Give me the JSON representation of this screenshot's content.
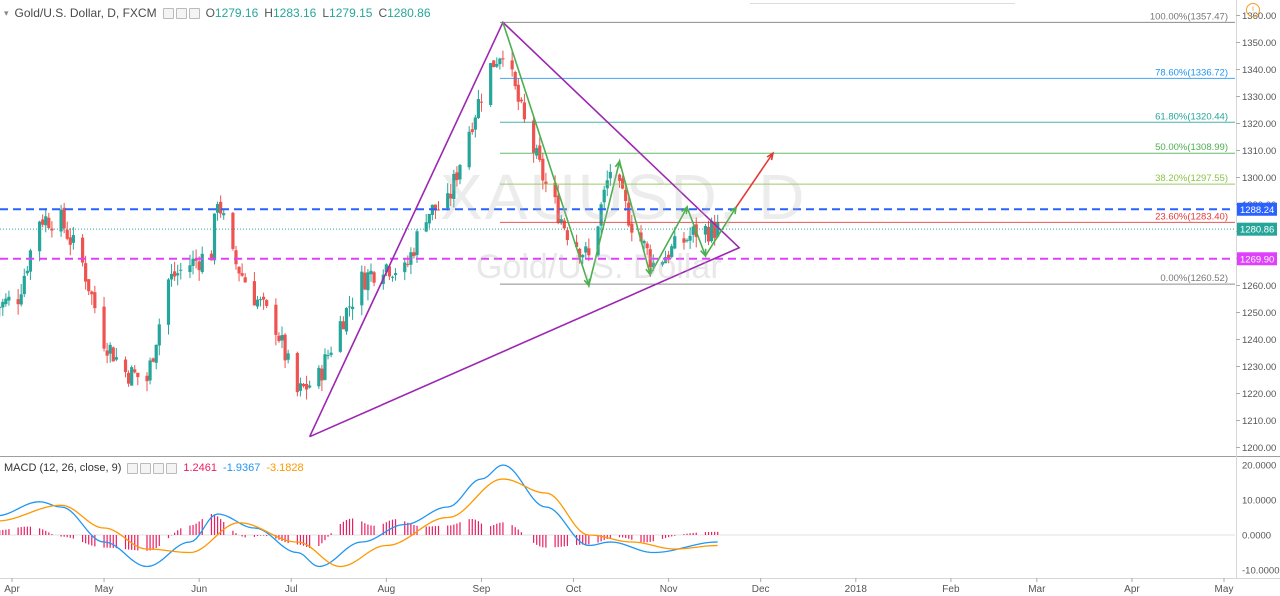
{
  "header": {
    "symbol": "Gold/U.S. Dollar, D, FXCM",
    "open_label": "O",
    "open": "1279.16",
    "high_label": "H",
    "high": "1283.16",
    "low_label": "L",
    "low": "1279.15",
    "close_label": "C",
    "close": "1280.86"
  },
  "watermark": {
    "ticker": "XAUUSD, D",
    "name": "Gold/U.S. Dollar"
  },
  "macd_header": {
    "label": "MACD (12, 26, close, 9)",
    "hist": "1.2461",
    "macd": "-1.9367",
    "signal": "-3.1828"
  },
  "colors": {
    "up": "#26a69a",
    "down": "#ef5350",
    "triangle": "#9c27b0",
    "zigzag": "#4caf50",
    "arrow_red": "#e53935",
    "blue_level": "#2962ff",
    "magenta_level": "#e040fb"
  },
  "chart_data": [
    {
      "type": "candlestick",
      "title": "Gold/U.S. Dollar, D, FXCM",
      "y_ticks": [
        1200,
        1210,
        1220,
        1230,
        1240,
        1250,
        1260,
        1270,
        1280,
        1290,
        1300,
        1310,
        1320,
        1330,
        1340,
        1350,
        1360
      ],
      "y_tick_labels": [
        "1200.00",
        "1210.00",
        "1220.00",
        "1230.00",
        "1240.00",
        "1250.00",
        "1260.00",
        "1270.00",
        "1280.00",
        "1290.00",
        "1300.00",
        "1310.00",
        "1320.00",
        "1330.00",
        "1340.00",
        "1350.00",
        "1360.00"
      ],
      "ylim": [
        1196,
        1363
      ],
      "x_ticks": [
        "Apr",
        "May",
        "Jun",
        "Jul",
        "Aug",
        "Sep",
        "Oct",
        "Nov",
        "Dec",
        "2018",
        "Feb",
        "Mar",
        "Apr",
        "May"
      ],
      "x_tick_dates": [
        "2017-04-01",
        "2017-05-01",
        "2017-06-01",
        "2017-07-01",
        "2017-08-01",
        "2017-09-01",
        "2017-10-01",
        "2017-11-01",
        "2017-12-01",
        "2018-01-01",
        "2018-02-01",
        "2018-03-01",
        "2018-04-01",
        "2018-05-01"
      ],
      "close_path": [
        [
          "2017-03-27",
          1252
        ],
        [
          "2017-04-03",
          1256
        ],
        [
          "2017-04-10",
          1285
        ],
        [
          "2017-04-17",
          1284
        ],
        [
          "2017-04-24",
          1268
        ],
        [
          "2017-05-01",
          1240
        ],
        [
          "2017-05-08",
          1228
        ],
        [
          "2017-05-15",
          1225
        ],
        [
          "2017-05-22",
          1262
        ],
        [
          "2017-05-29",
          1268
        ],
        [
          "2017-06-05",
          1272
        ],
        [
          "2017-06-07",
          1293
        ],
        [
          "2017-06-12",
          1270
        ],
        [
          "2017-06-19",
          1256
        ],
        [
          "2017-06-26",
          1245
        ],
        [
          "2017-07-03",
          1220
        ],
        [
          "2017-07-10",
          1226
        ],
        [
          "2017-07-17",
          1246
        ],
        [
          "2017-07-24",
          1262
        ],
        [
          "2017-07-31",
          1268
        ],
        [
          "2017-08-07",
          1265
        ],
        [
          "2017-08-14",
          1287
        ],
        [
          "2017-08-21",
          1290
        ],
        [
          "2017-08-28",
          1318
        ],
        [
          "2017-09-04",
          1341
        ],
        [
          "2017-09-08",
          1348
        ],
        [
          "2017-09-15",
          1320
        ],
        [
          "2017-09-22",
          1297
        ],
        [
          "2017-09-29",
          1280
        ],
        [
          "2017-10-06",
          1270
        ],
        [
          "2017-10-13",
          1303
        ],
        [
          "2017-10-20",
          1283
        ],
        [
          "2017-10-27",
          1268
        ],
        [
          "2017-11-03",
          1274
        ],
        [
          "2017-11-10",
          1280
        ],
        [
          "2017-11-17",
          1281
        ]
      ],
      "last_price": "1280.86"
    },
    {
      "type": "line",
      "title": "MACD (12, 26, close, 9)",
      "y_ticks": [
        -10,
        0,
        10,
        20
      ],
      "y_tick_labels": [
        "-10.0000",
        "0.0000",
        "10.0000",
        "20.0000"
      ],
      "ylim": [
        -12,
        22
      ],
      "series": [
        {
          "name": "MACD",
          "color": "#2196f3",
          "values": [
            [
              "2017-03-27",
              5.5
            ],
            [
              "2017-04-10",
              9.5
            ],
            [
              "2017-04-17",
              8
            ],
            [
              "2017-05-01",
              -2
            ],
            [
              "2017-05-15",
              -9
            ],
            [
              "2017-05-29",
              -2
            ],
            [
              "2017-06-07",
              6
            ],
            [
              "2017-06-19",
              2
            ],
            [
              "2017-07-03",
              -5
            ],
            [
              "2017-07-10",
              -9
            ],
            [
              "2017-07-24",
              -2
            ],
            [
              "2017-08-07",
              3
            ],
            [
              "2017-08-21",
              8
            ],
            [
              "2017-09-01",
              16
            ],
            [
              "2017-09-08",
              20
            ],
            [
              "2017-09-22",
              8
            ],
            [
              "2017-10-06",
              -3
            ],
            [
              "2017-10-13",
              -2
            ],
            [
              "2017-10-27",
              -5
            ],
            [
              "2017-11-17",
              -2
            ]
          ]
        },
        {
          "name": "Signal",
          "color": "#ff9800",
          "values": [
            [
              "2017-03-27",
              4
            ],
            [
              "2017-04-17",
              8.5
            ],
            [
              "2017-05-01",
              2
            ],
            [
              "2017-05-15",
              -4
            ],
            [
              "2017-05-29",
              -5
            ],
            [
              "2017-06-14",
              3.5
            ],
            [
              "2017-07-03",
              -2
            ],
            [
              "2017-07-17",
              -9
            ],
            [
              "2017-08-01",
              -3
            ],
            [
              "2017-08-21",
              5
            ],
            [
              "2017-09-08",
              16
            ],
            [
              "2017-09-22",
              12
            ],
            [
              "2017-10-06",
              0
            ],
            [
              "2017-10-20",
              -2
            ],
            [
              "2017-11-03",
              -4
            ],
            [
              "2017-11-17",
              -3
            ]
          ]
        }
      ],
      "histogram_color": "#e91e63"
    }
  ],
  "fib_levels": [
    {
      "label": "100.00%(1357.47)",
      "value": 1357.47,
      "color": "#787878"
    },
    {
      "label": "78.60%(1336.72)",
      "value": 1336.72,
      "color": "#2196f3"
    },
    {
      "label": "61.80%(1320.44)",
      "value": 1320.44,
      "color": "#26a69a"
    },
    {
      "label": "50.00%(1308.99)",
      "value": 1308.99,
      "color": "#4caf50"
    },
    {
      "label": "38.20%(1297.55)",
      "value": 1297.55,
      "color": "#8bc34a"
    },
    {
      "label": "23.60%(1283.40)",
      "value": 1283.4,
      "color": "#e53935"
    },
    {
      "label": "0.00%(1260.52)",
      "value": 1260.52,
      "color": "#787878"
    }
  ],
  "price_tags": [
    {
      "label": "1288.24",
      "value": 1288.24,
      "color": "#2962ff"
    },
    {
      "label": "1280.86",
      "value": 1280.86,
      "color": "#26a69a"
    },
    {
      "label": "1269.90",
      "value": 1269.9,
      "color": "#e040fb"
    }
  ]
}
